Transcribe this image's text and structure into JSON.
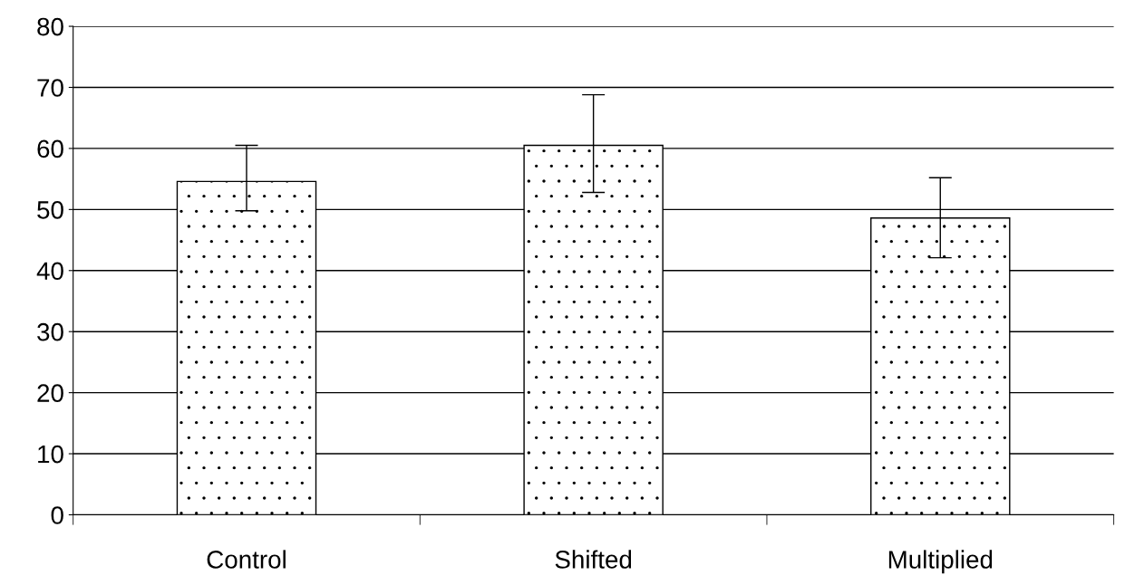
{
  "chart_data": {
    "type": "bar",
    "categories": [
      "Control",
      "Shifted",
      "Multiplied"
    ],
    "series": [
      {
        "color": "#ffffff",
        "values": [
          54.6,
          60.5,
          48.6
        ],
        "errors": [
          [
            49.8,
            60.5
          ],
          [
            52.8,
            68.8
          ],
          [
            42.1,
            55.2
          ]
        ]
      }
    ],
    "ylim": [
      0,
      80
    ],
    "yticks": [
      0,
      10,
      20,
      30,
      40,
      50,
      60,
      70,
      80
    ],
    "grid": "y",
    "legend": false
  }
}
